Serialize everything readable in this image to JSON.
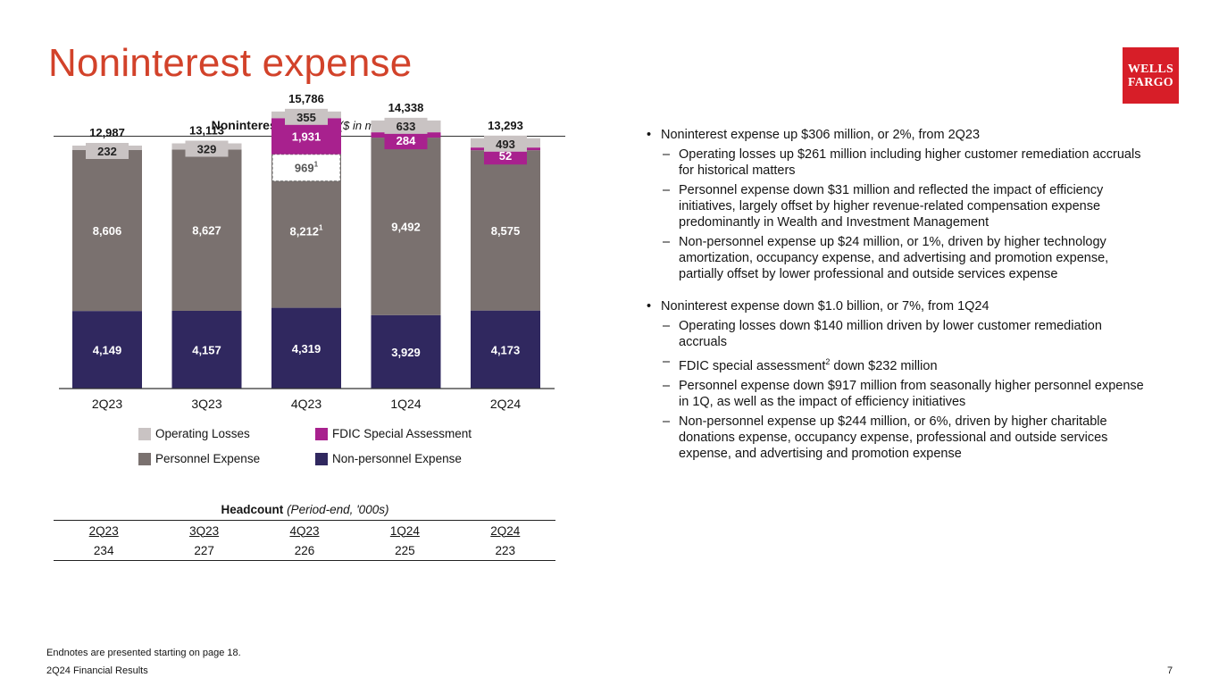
{
  "title": "Noninterest expense",
  "logo": {
    "line1": "WELLS",
    "line2": "FARGO"
  },
  "chart_title": "Noninterest Expense",
  "chart_subtitle": "($ in millions)",
  "chart_data": {
    "type": "bar",
    "title": "Noninterest Expense ($ in millions)",
    "categories": [
      "2Q23",
      "3Q23",
      "4Q23",
      "1Q24",
      "2Q24"
    ],
    "series": [
      {
        "name": "Non-personnel Expense",
        "values": [
          4149,
          4157,
          4319,
          3929,
          4173
        ],
        "labels": [
          "4,149",
          "4,157",
          "4,319",
          "3,929",
          "4,173"
        ],
        "color": "#30285f"
      },
      {
        "name": "Personnel Expense",
        "values": [
          8606,
          8627,
          8212,
          9492,
          8575
        ],
        "labels": [
          "8,606",
          "8,627",
          "8,212",
          "9,492",
          "8,575"
        ],
        "color": "#7a716f"
      },
      {
        "name": "FDIC Special Assessment",
        "values": [
          0,
          0,
          1931,
          284,
          52
        ],
        "labels": [
          "",
          "",
          "1,931",
          "284",
          "52"
        ],
        "color": "#a8218e"
      },
      {
        "name": "Operating Losses",
        "values": [
          232,
          329,
          355,
          633,
          493
        ],
        "labels": [
          "232",
          "329",
          "355",
          "633",
          "493"
        ],
        "color": "#c9c3c3"
      }
    ],
    "totals": [
      12987,
      13113,
      15786,
      14338,
      13293
    ],
    "total_labels": [
      "12,987",
      "13,113",
      "15,786",
      "14,338",
      "13,293"
    ],
    "annotation": {
      "category": "4Q23",
      "label": "969",
      "note": "1",
      "personnel_note": "1"
    },
    "ylim": [
      0,
      16500
    ],
    "xlabel": "",
    "ylabel": ""
  },
  "legend": [
    {
      "label": "Operating Losses",
      "color": "#c9c3c3"
    },
    {
      "label": "FDIC Special Assessment",
      "color": "#a8218e"
    },
    {
      "label": "Personnel Expense",
      "color": "#7a716f"
    },
    {
      "label": "Non-personnel Expense",
      "color": "#30285f"
    }
  ],
  "headcount": {
    "title": "Headcount",
    "subtitle": "(Period-end, '000s)",
    "headers": [
      "2Q23",
      "3Q23",
      "4Q23",
      "1Q24",
      "2Q24"
    ],
    "values": [
      "234",
      "227",
      "226",
      "225",
      "223"
    ]
  },
  "bullets": [
    {
      "text": "Noninterest expense up $306 million, or 2%, from 2Q23",
      "subs": [
        "Operating losses up $261 million including higher customer remediation accruals for historical matters",
        "Personnel expense down $31 million and reflected the impact of efficiency initiatives, largely offset by higher revenue-related compensation expense predominantly in Wealth and Investment Management",
        "Non-personnel expense up $24 million, or 1%, driven by higher technology amortization, occupancy expense, and advertising and promotion expense, partially offset by lower professional and outside services expense"
      ]
    },
    {
      "text": "Noninterest expense down $1.0 billion, or 7%, from 1Q24",
      "subs": [
        "Operating losses down $140 million driven by lower customer remediation accruals",
        "FDIC_SPECIAL",
        "Personnel expense down $917 million from seasonally higher personnel expense in 1Q, as well as the impact of efficiency initiatives",
        "Non-personnel expense up $244 million, or 6%, driven by higher charitable donations expense, occupancy expense, professional and outside services expense, and advertising and promotion expense"
      ]
    }
  ],
  "fdic_bullet": {
    "before": "FDIC special assessment",
    "sup": "2",
    "after": " down $232 million"
  },
  "footnote": "Endnotes are presented starting on page 18.",
  "footer_left": "2Q24 Financial Results",
  "page_number": "7"
}
